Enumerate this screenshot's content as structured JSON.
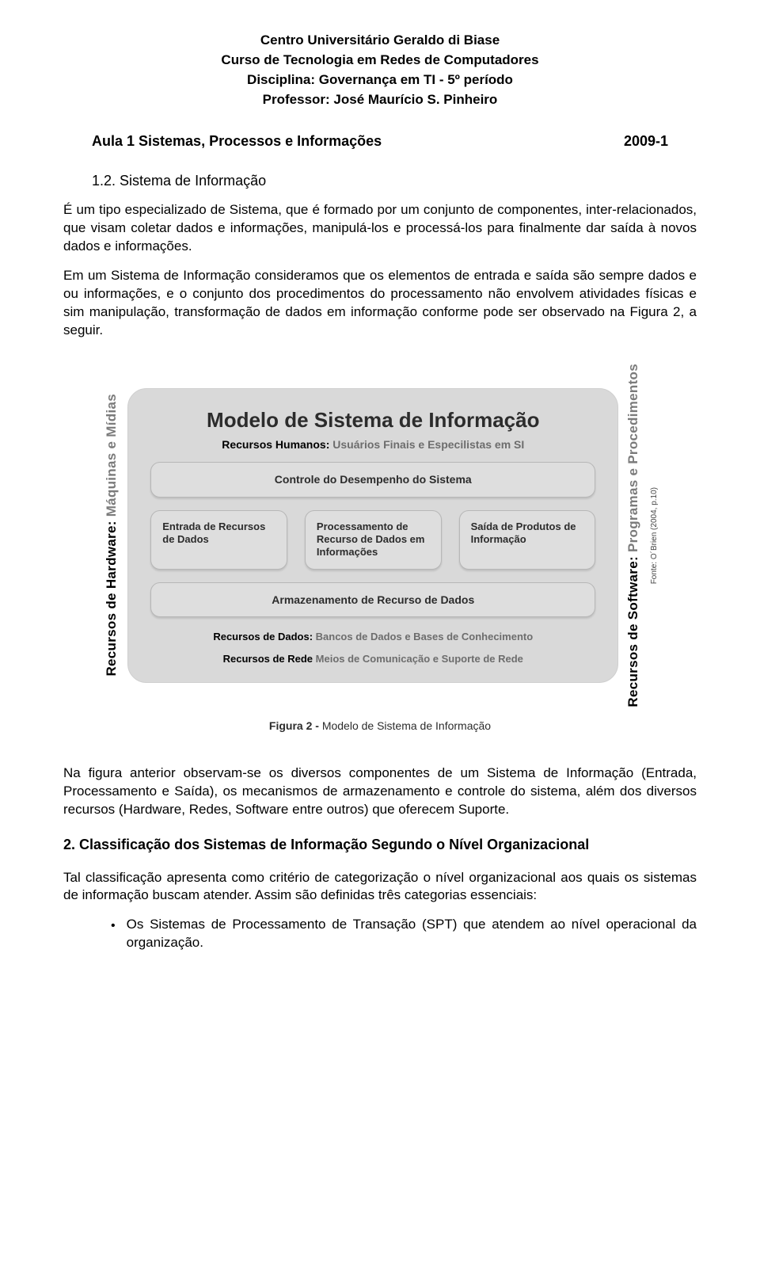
{
  "header": {
    "line1": "Centro Universitário Geraldo di Biase",
    "line2": "Curso de Tecnologia em Redes de Computadores",
    "line3": "Disciplina:  Governança em TI - 5º período",
    "line4": "Professor: José Maurício S. Pinheiro"
  },
  "aula": {
    "title": "Aula 1 Sistemas, Processos e Informações",
    "code": "2009-1"
  },
  "section12": {
    "num": "1.2. Sistema de Informação",
    "p1": "É um tipo especializado de Sistema, que é formado por um conjunto de componentes, inter-relacionados, que visam coletar dados e informações, manipulá-los e processá-los para finalmente dar saída à novos dados e informações.",
    "p2": "Em um Sistema de Informação consideramos que os elementos de entrada e saída são sempre dados e ou informações, e o conjunto dos procedimentos do processamento não envolvem atividades físicas e sim manipulação, transformação de dados em informação conforme pode ser observado na Figura 2, a seguir."
  },
  "figure": {
    "left_label_bold": "Recursos de Hardware:",
    "left_label_light": " Máquinas e Mídias",
    "right_label_bold": "Recursos de Software:",
    "right_label_light": " Programas e Procedimentos",
    "source": "Fonte: O´Brien (2004, p.10)",
    "title": "Modelo de Sistema de Informação",
    "sub_bold": "Recursos Humanos:",
    "sub_light": " Usuários Finais e Especilistas em SI",
    "box_top": "Controle do Desempenho do Sistema",
    "box1": "Entrada de Recursos de Dados",
    "box2": "Processamento de Recurso de Dados em Informações",
    "box3": "Saída de Produtos de Informação",
    "box_bottom": "Armazenamento de Recurso de Dados",
    "foot1_bold": "Recursos de Dados:",
    "foot1_light": " Bancos de Dados e Bases de Conhecimento",
    "foot2_bold": "Recursos de Rede",
    "foot2_light": " Meios de Comunicação e Suporte de Rede",
    "caption_bold": "Figura 2 -",
    "caption_rest": " Modelo de Sistema de Informação"
  },
  "after_figure": {
    "p1": "Na figura anterior observam-se os diversos componentes de um Sistema de Informação (Entrada, Processamento e Saída), os mecanismos de armazenamento e controle do sistema, além dos diversos recursos (Hardware, Redes, Software entre outros) que oferecem Suporte."
  },
  "section2": {
    "heading": "2. Classificação dos Sistemas de Informação Segundo o Nível Organizacional",
    "p1": "Tal classificação apresenta como critério de categorização o nível organizacional aos quais os sistemas de informação buscam atender. Assim são definidas três categorias essenciais:",
    "bullet1": "Os Sistemas de Processamento de Transação (SPT) que atendem ao nível operacional da organização."
  },
  "colors": {
    "panel_bg": "#d9d9d9",
    "box_bg": "#dedede",
    "box_border": "#b7b7b7",
    "muted_text": "#6d6d6d"
  }
}
